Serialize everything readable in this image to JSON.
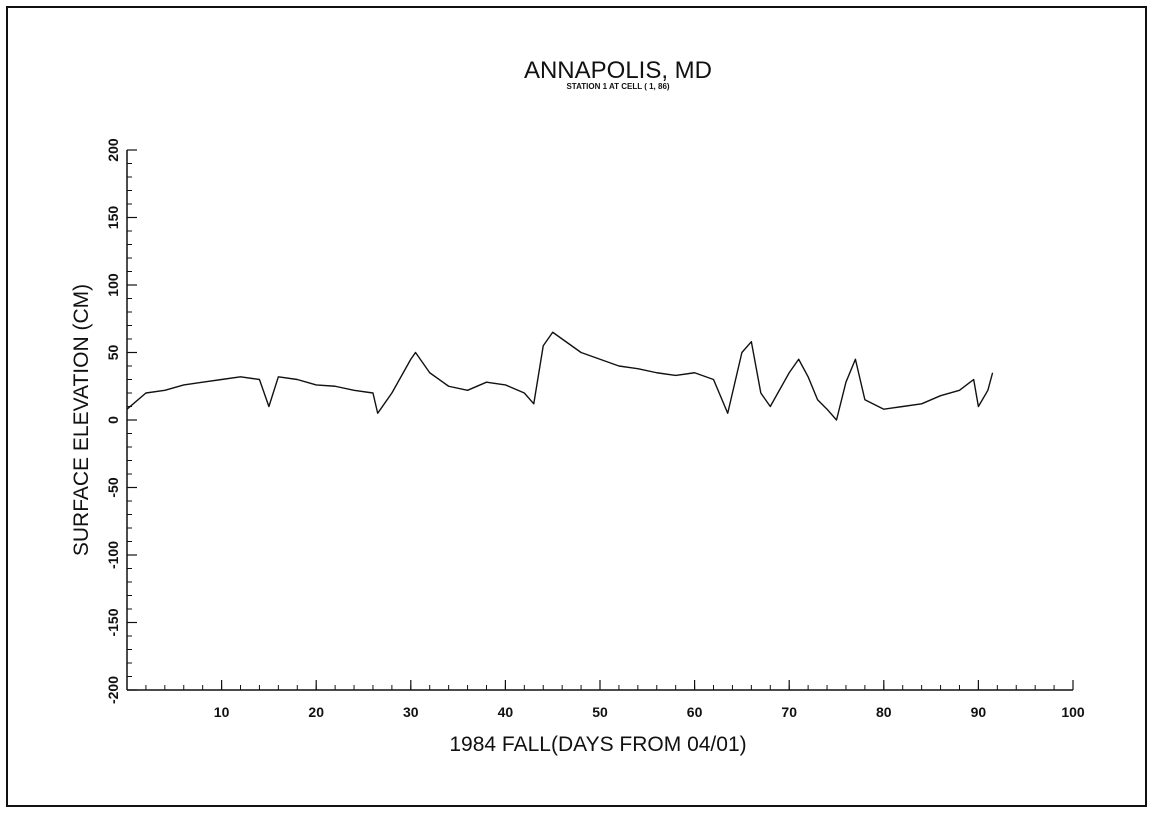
{
  "chart_data": {
    "type": "line",
    "title": "ANNAPOLIS, MD",
    "subtitle": "STATION 1 AT CELL ( 1, 86)",
    "xlabel": "1984 FALL(DAYS FROM 04/01)",
    "ylabel": "SURFACE ELEVATION (CM)",
    "xlim": [
      0,
      100
    ],
    "ylim": [
      -200,
      200
    ],
    "xticks": [
      10,
      20,
      30,
      40,
      50,
      60,
      70,
      80,
      90,
      100
    ],
    "yticks": [
      -200,
      -150,
      -100,
      -50,
      0,
      50,
      100,
      150,
      200
    ],
    "grid": false,
    "line_color": "#111111",
    "series": [
      {
        "x": [
          0,
          2,
          4,
          6,
          8,
          10,
          12,
          14,
          15,
          16,
          18,
          20,
          22,
          24,
          26,
          26.5,
          28,
          30,
          30.5,
          32,
          34,
          36,
          38,
          40,
          42,
          43,
          44,
          45,
          46,
          48,
          50,
          52,
          54,
          56,
          58,
          60,
          62,
          63.5,
          64,
          65,
          66,
          67,
          68,
          70,
          71,
          72,
          73,
          74,
          75,
          76,
          77,
          78,
          80,
          82,
          84,
          86,
          88,
          89.5,
          90,
          91,
          91.5
        ],
        "y": [
          8,
          20,
          22,
          26,
          28,
          30,
          32,
          30,
          10,
          32,
          30,
          26,
          25,
          22,
          20,
          5,
          20,
          45,
          50,
          35,
          25,
          22,
          28,
          26,
          20,
          12,
          55,
          65,
          60,
          50,
          45,
          40,
          38,
          35,
          33,
          35,
          30,
          5,
          20,
          50,
          58,
          20,
          10,
          35,
          45,
          32,
          15,
          8,
          0,
          28,
          45,
          15,
          8,
          10,
          12,
          18,
          22,
          30,
          10,
          22,
          35
        ]
      }
    ]
  }
}
